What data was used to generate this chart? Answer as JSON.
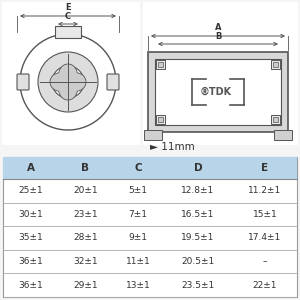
{
  "bg_color": "#f5f5f5",
  "white": "#ffffff",
  "table_header_color": "#b8d4e8",
  "table_bg": "#ffffff",
  "line_color": "#555555",
  "text_color": "#333333",
  "table_headers": [
    "A",
    "B",
    "C",
    "D",
    "E"
  ],
  "table_rows": [
    [
      "25±1",
      "20±1",
      "5±1",
      "12.8±1",
      "11.2±1"
    ],
    [
      "30±1",
      "23±1",
      "7±1",
      "16.5±1",
      "15±1"
    ],
    [
      "35±1",
      "28±1",
      "9±1",
      "19.5±1",
      "17.4±1"
    ],
    [
      "36±1",
      "32±1",
      "11±1",
      "20.5±1",
      "–"
    ],
    [
      "36±1",
      "29±1",
      "13±1",
      "23.5±1",
      "22±1"
    ]
  ],
  "scale_label": "► 11mm"
}
